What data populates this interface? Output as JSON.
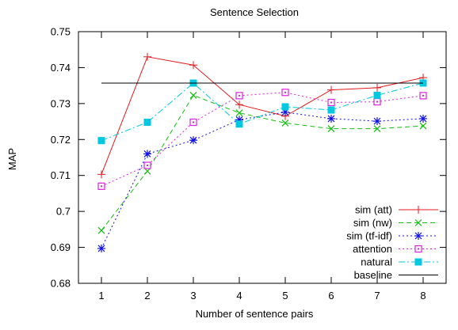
{
  "chart_data": {
    "type": "line",
    "title": "Sentence Selection",
    "xlabel": "Number of sentence pairs",
    "ylabel": "MAP",
    "x": [
      1,
      2,
      3,
      4,
      5,
      6,
      7,
      8
    ],
    "xlim": [
      0.5,
      8.5
    ],
    "ylim": [
      0.68,
      0.75
    ],
    "xticks": [
      "1",
      "2",
      "3",
      "4",
      "5",
      "6",
      "7",
      "8"
    ],
    "yticks": [
      "0.68",
      "0.69",
      "0.7",
      "0.71",
      "0.72",
      "0.73",
      "0.74",
      "0.75"
    ],
    "legend_position": "bottom-right",
    "grid": false,
    "series": [
      {
        "name": "sim (att)",
        "color": "#e41a1c",
        "dash": "solid",
        "marker": "plus",
        "values": [
          0.7103,
          0.743,
          0.7407,
          0.7297,
          0.7265,
          0.7338,
          0.7344,
          0.7372
        ]
      },
      {
        "name": "sim (nw)",
        "color": "#10c010",
        "dash": "dashed",
        "marker": "x",
        "values": [
          0.6947,
          0.7112,
          0.7323,
          0.7274,
          0.7246,
          0.723,
          0.723,
          0.7238
        ]
      },
      {
        "name": "sim (tf-idf)",
        "color": "#1010e0",
        "dash": "dotted",
        "marker": "star",
        "values": [
          0.6897,
          0.716,
          0.7198,
          0.7255,
          0.7276,
          0.7258,
          0.7251,
          0.7258
        ]
      },
      {
        "name": "attention",
        "color": "#e020e0",
        "dash": "dotted",
        "marker": "square-open",
        "values": [
          0.707,
          0.7128,
          0.7248,
          0.7322,
          0.7331,
          0.7303,
          0.7305,
          0.7322
        ]
      },
      {
        "name": "natural",
        "color": "#00c8e0",
        "dash": "dashdot",
        "marker": "square-filled",
        "values": [
          0.7197,
          0.7248,
          0.7357,
          0.7243,
          0.7291,
          0.7282,
          0.7323,
          0.7357
        ]
      },
      {
        "name": "baseline",
        "color": "#000000",
        "dash": "solid",
        "marker": "none",
        "values": [
          0.7357,
          0.7357,
          0.7357,
          0.7357,
          0.7357,
          0.7357,
          0.7357,
          0.7357
        ]
      }
    ]
  }
}
